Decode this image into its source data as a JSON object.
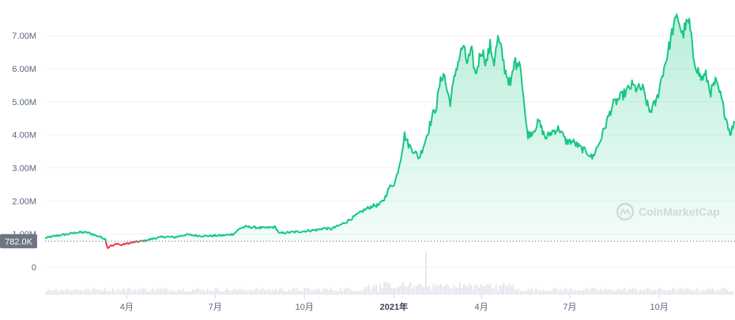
{
  "chart_data": {
    "type": "area",
    "y_tick_labels": [
      "0",
      "1.00M",
      "2.00M",
      "3.00M",
      "4.00M",
      "5.00M",
      "6.00M",
      "7.00M"
    ],
    "y_tick_values": [
      0,
      1000000,
      2000000,
      3000000,
      4000000,
      5000000,
      6000000,
      7000000
    ],
    "ylim": [
      0,
      7650000
    ],
    "x_tick_labels": [
      "4月",
      "7月",
      "10月",
      "2021年",
      "4月",
      "7月",
      "10月"
    ],
    "x_tick_dates": [
      "2020-04-01",
      "2020-07-01",
      "2020-10-01",
      "2021-01-01",
      "2021-04-01",
      "2021-07-01",
      "2021-10-01"
    ],
    "xlim": [
      "2020-01-08",
      "2021-12-18"
    ],
    "reference": {
      "label": "782.0K",
      "value": 782000,
      "style": "dotted"
    },
    "grid": true,
    "colors": {
      "above": "#16c784",
      "below": "#ea3943",
      "grid": "#eff2f5",
      "axis_text": "#58667e",
      "volume": "#dfe3ea",
      "tag_bg": "#6e7583"
    },
    "watermark": "CoinMarketCap",
    "series": [
      {
        "dates": [
          "2020-01-08",
          "2020-01-20",
          "2020-02-01",
          "2020-02-10",
          "2020-02-20",
          "2020-03-01",
          "2020-03-06",
          "2020-03-10",
          "2020-03-12",
          "2020-03-13",
          "2020-03-15",
          "2020-03-18",
          "2020-03-22",
          "2020-03-26",
          "2020-03-30",
          "2020-04-05",
          "2020-04-10",
          "2020-04-20",
          "2020-05-01",
          "2020-05-10",
          "2020-05-20",
          "2020-06-01",
          "2020-06-10",
          "2020-06-20",
          "2020-07-01",
          "2020-07-10",
          "2020-07-20",
          "2020-07-27",
          "2020-08-02",
          "2020-08-10",
          "2020-08-20",
          "2020-09-01",
          "2020-09-05",
          "2020-09-15",
          "2020-09-25",
          "2020-10-05",
          "2020-10-15",
          "2020-10-21",
          "2020-10-28",
          "2020-11-05",
          "2020-11-12",
          "2020-11-20",
          "2020-11-25",
          "2020-12-01",
          "2020-12-10",
          "2020-12-17",
          "2020-12-22",
          "2020-12-27",
          "2021-01-02",
          "2021-01-05",
          "2021-01-08",
          "2021-01-12",
          "2021-01-16",
          "2021-01-22",
          "2021-01-27",
          "2021-02-02",
          "2021-02-07",
          "2021-02-10",
          "2021-02-14",
          "2021-02-17",
          "2021-02-21",
          "2021-02-25",
          "2021-02-28",
          "2021-03-06",
          "2021-03-13",
          "2021-03-17",
          "2021-03-22",
          "2021-03-26",
          "2021-04-01",
          "2021-04-06",
          "2021-04-10",
          "2021-04-14",
          "2021-04-18",
          "2021-04-22",
          "2021-04-25",
          "2021-05-01",
          "2021-05-06",
          "2021-05-08",
          "2021-05-10",
          "2021-05-13",
          "2021-05-17",
          "2021-05-19",
          "2021-05-24",
          "2021-05-30",
          "2021-06-06",
          "2021-06-13",
          "2021-06-20",
          "2021-06-27",
          "2021-07-04",
          "2021-07-12",
          "2021-07-20",
          "2021-07-24",
          "2021-08-01",
          "2021-08-08",
          "2021-08-14",
          "2021-08-21",
          "2021-08-28",
          "2021-09-03",
          "2021-09-07",
          "2021-09-14",
          "2021-09-21",
          "2021-09-28",
          "2021-10-04",
          "2021-10-10",
          "2021-10-15",
          "2021-10-20",
          "2021-10-25",
          "2021-10-28",
          "2021-11-01",
          "2021-11-05",
          "2021-11-09",
          "2021-11-13",
          "2021-11-18",
          "2021-11-23",
          "2021-11-28",
          "2021-12-03",
          "2021-12-08",
          "2021-12-13",
          "2021-12-18"
        ],
        "values": [
          880000,
          950000,
          1000000,
          1050000,
          1050000,
          950000,
          900000,
          850000,
          620000,
          580000,
          650000,
          640000,
          720000,
          660000,
          700000,
          730000,
          760000,
          800000,
          880000,
          920000,
          900000,
          980000,
          960000,
          940000,
          950000,
          960000,
          1000000,
          1180000,
          1220000,
          1200000,
          1180000,
          1210000,
          1020000,
          1050000,
          1070000,
          1100000,
          1130000,
          1180000,
          1150000,
          1250000,
          1350000,
          1500000,
          1600000,
          1720000,
          1850000,
          1880000,
          2050000,
          2400000,
          2550000,
          2900000,
          3300000,
          4000000,
          3700000,
          3500000,
          3300000,
          3800000,
          4300000,
          4600000,
          4900000,
          5500000,
          5900000,
          5300000,
          5000000,
          6000000,
          6700000,
          6200000,
          6500000,
          5800000,
          6600000,
          6200000,
          6700000,
          6200000,
          6900000,
          6500000,
          6000000,
          5500000,
          6300000,
          6000000,
          6400000,
          5600000,
          4300000,
          4000000,
          4100000,
          4400000,
          3900000,
          4100000,
          4200000,
          3800000,
          3800000,
          3600000,
          3450000,
          3300000,
          3800000,
          4400000,
          4900000,
          5100000,
          5300000,
          5500000,
          5400000,
          5400000,
          4700000,
          5000000,
          5800000,
          6500000,
          7200000,
          7600000,
          7000000,
          7300000,
          7400000,
          6400000,
          6000000,
          5700000,
          5800000,
          5300000,
          5600000,
          5200000,
          4600000,
          4050000,
          4380000
        ]
      }
    ]
  }
}
